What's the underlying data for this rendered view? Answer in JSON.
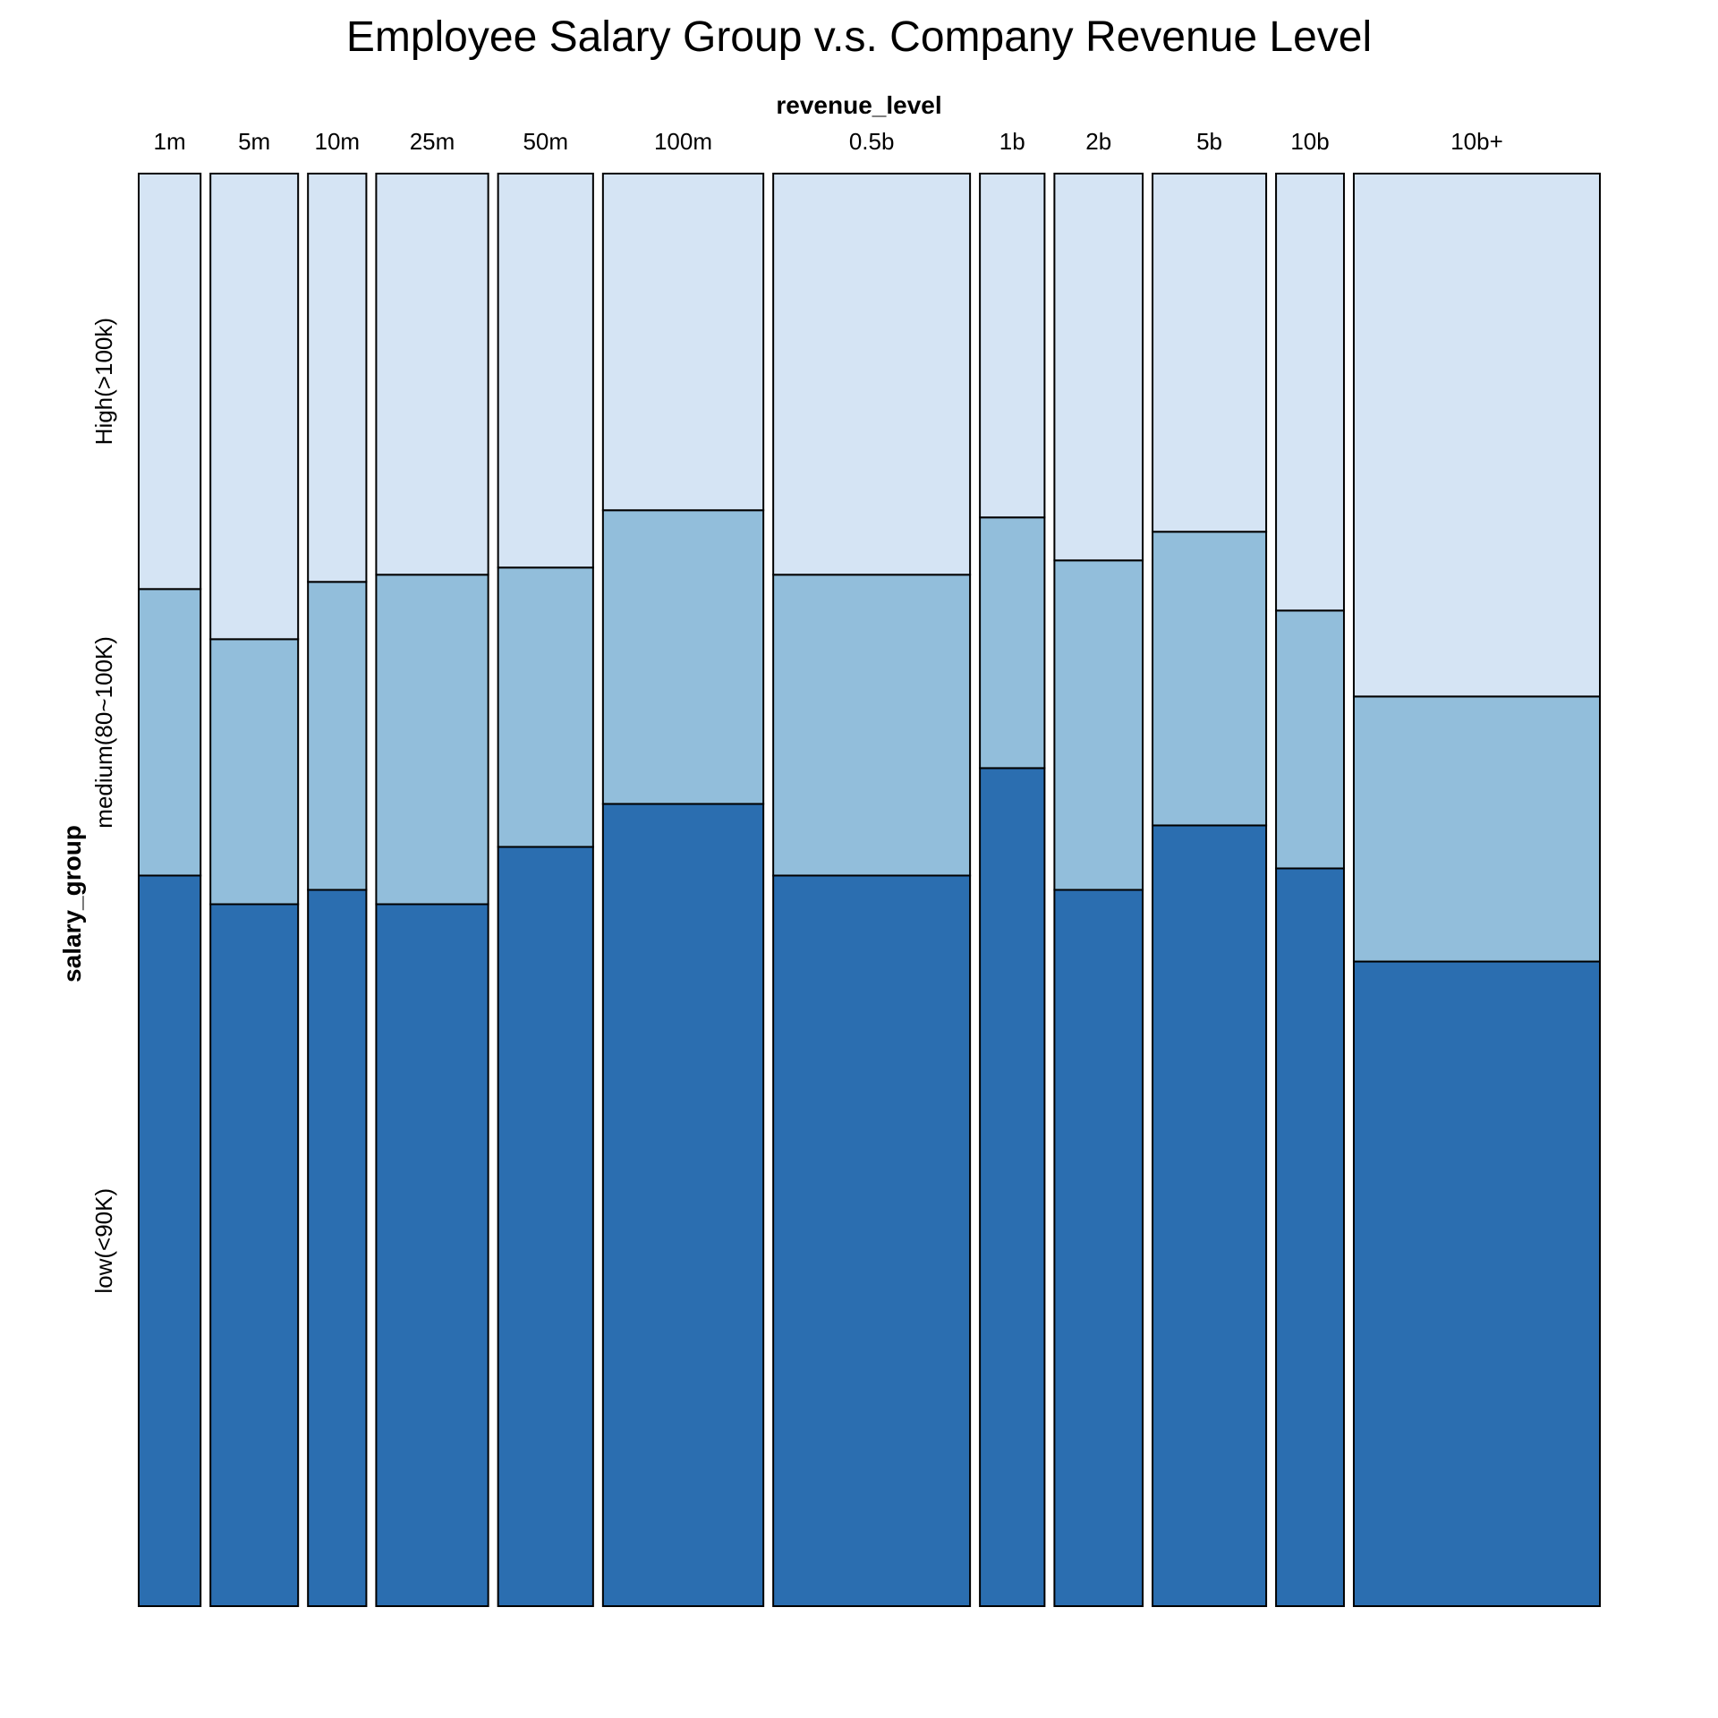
{
  "chart_data": {
    "type": "mosaic",
    "title": "Employee Salary Group v.s. Company Revenue Level",
    "xlabel": "revenue_level",
    "ylabel": "salary_group",
    "categories": [
      "1m",
      "5m",
      "10m",
      "25m",
      "50m",
      "100m",
      "0.5b",
      "1b",
      "2b",
      "5b",
      "10b",
      "10b+"
    ],
    "category_width_share": [
      0.0422,
      0.0598,
      0.0398,
      0.0764,
      0.0648,
      0.1094,
      0.1342,
      0.0441,
      0.0602,
      0.0775,
      0.0463,
      0.1678
    ],
    "series": [
      {
        "name": "low(<90K)",
        "color": "#2B6EB0",
        "values": [
          0.51,
          0.49,
          0.5,
          0.49,
          0.53,
          0.56,
          0.51,
          0.585,
          0.5,
          0.545,
          0.515,
          0.45
        ]
      },
      {
        "name": "medium(80~100K)",
        "color": "#92BEDB",
        "values": [
          0.2,
          0.185,
          0.215,
          0.23,
          0.195,
          0.205,
          0.21,
          0.175,
          0.23,
          0.205,
          0.18,
          0.185
        ]
      },
      {
        "name": "High(>100k)",
        "color": "#D5E4F4",
        "values": [
          0.29,
          0.325,
          0.285,
          0.28,
          0.275,
          0.235,
          0.28,
          0.24,
          0.27,
          0.25,
          0.305,
          0.365
        ]
      }
    ],
    "grid": false,
    "legend": "none"
  }
}
